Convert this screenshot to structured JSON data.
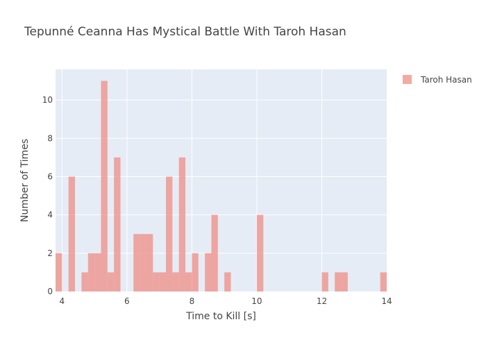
{
  "chart_data": {
    "type": "bar",
    "title": "Tepunné Ceanna Has Mystical Battle With Taroh Hasan",
    "xlabel": "Time to Kill [s]",
    "ylabel": "Number of Times",
    "xlim": [
      3.8,
      14.0
    ],
    "ylim": [
      0,
      11.6
    ],
    "bin_width": 0.2,
    "x_ticks": [
      4,
      6,
      8,
      10,
      12,
      14
    ],
    "y_ticks": [
      0,
      2,
      4,
      6,
      8,
      10
    ],
    "grid": true,
    "legend_position": "top-right",
    "series": [
      {
        "name": "Taroh Hasan",
        "color": "#ef8e84",
        "bins": [
          {
            "x": 3.8,
            "count": 2
          },
          {
            "x": 4.2,
            "count": 6
          },
          {
            "x": 4.6,
            "count": 1
          },
          {
            "x": 4.8,
            "count": 2
          },
          {
            "x": 5.0,
            "count": 2
          },
          {
            "x": 5.2,
            "count": 11
          },
          {
            "x": 5.4,
            "count": 1
          },
          {
            "x": 5.6,
            "count": 7
          },
          {
            "x": 6.2,
            "count": 3
          },
          {
            "x": 6.4,
            "count": 3
          },
          {
            "x": 6.6,
            "count": 3
          },
          {
            "x": 6.8,
            "count": 1
          },
          {
            "x": 7.0,
            "count": 1
          },
          {
            "x": 7.2,
            "count": 6
          },
          {
            "x": 7.4,
            "count": 1
          },
          {
            "x": 7.6,
            "count": 7
          },
          {
            "x": 7.8,
            "count": 1
          },
          {
            "x": 8.0,
            "count": 2
          },
          {
            "x": 8.4,
            "count": 2
          },
          {
            "x": 8.6,
            "count": 4
          },
          {
            "x": 9.0,
            "count": 1
          },
          {
            "x": 10.0,
            "count": 4
          },
          {
            "x": 12.0,
            "count": 1
          },
          {
            "x": 12.4,
            "count": 1
          },
          {
            "x": 12.6,
            "count": 1
          },
          {
            "x": 13.8,
            "count": 1
          }
        ]
      }
    ]
  }
}
